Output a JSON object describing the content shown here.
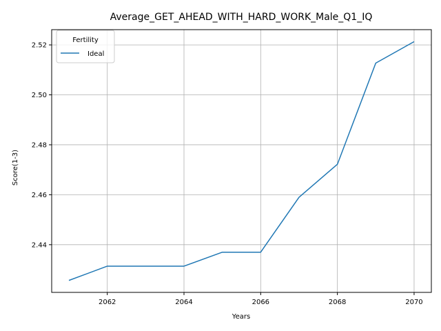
{
  "chart_data": {
    "type": "line",
    "title": "Average_GET_AHEAD_WITH_HARD_WORK_Male_Q1_IQ",
    "xlabel": "Years",
    "ylabel": "Score(1-3)",
    "x": [
      2061,
      2062,
      2063,
      2064,
      2065,
      2066,
      2067,
      2068,
      2069,
      2070
    ],
    "series": [
      {
        "name": "Ideal",
        "color": "#1f77b4",
        "values": [
          2.4257,
          2.4314,
          2.4314,
          2.4314,
          2.437,
          2.437,
          2.459,
          2.4722,
          2.5127,
          2.5213
        ]
      }
    ],
    "xlim": [
      2060.55,
      2070.45
    ],
    "ylim": [
      2.4209,
      2.5261
    ],
    "xticks": [
      2062,
      2064,
      2066,
      2068,
      2070
    ],
    "yticks": [
      2.44,
      2.46,
      2.48,
      2.5,
      2.52
    ],
    "ytick_labels": [
      "2.44",
      "2.46",
      "2.48",
      "2.50",
      "2.52"
    ],
    "grid": true,
    "legend": {
      "title": "Fertility",
      "placement": "top-left"
    }
  }
}
